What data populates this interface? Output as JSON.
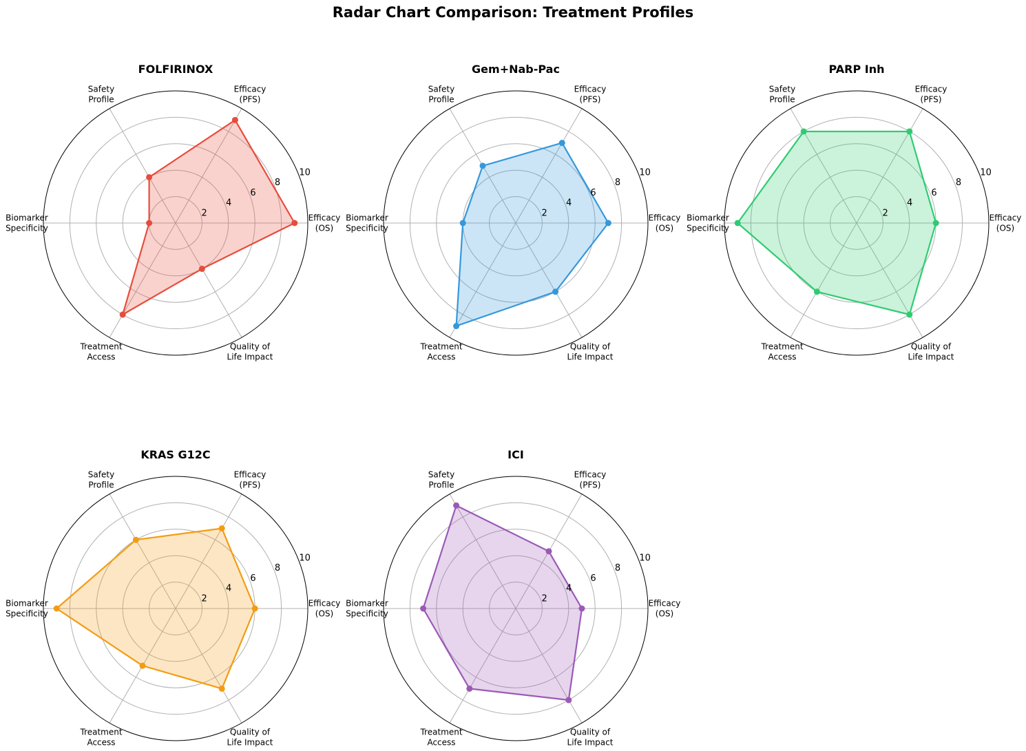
{
  "title": "Radar Chart Comparison: Treatment Profiles",
  "chart_data": {
    "type": "radar",
    "axes": [
      "Efficacy\n(OS)",
      "Efficacy\n(PFS)",
      "Safety\nProfile",
      "Biomarker\nSpecificity",
      "Treatment\nAccess",
      "Quality of\nLife Impact"
    ],
    "rlim": [
      0,
      10
    ],
    "rticks": [
      2,
      4,
      6,
      8,
      10
    ],
    "grid": true,
    "charts": [
      {
        "title": "FOLFIRINOX",
        "color": "#e74c3c",
        "values": [
          9,
          9,
          4,
          2,
          8,
          4
        ]
      },
      {
        "title": "Gem+Nab-Pac",
        "color": "#3498db",
        "values": [
          7,
          7,
          5,
          4,
          9,
          6
        ]
      },
      {
        "title": "PARP Inh",
        "color": "#2ecc71",
        "values": [
          6,
          8,
          8,
          9,
          6,
          8
        ]
      },
      {
        "title": "KRAS G12C",
        "color": "#f39c12",
        "values": [
          6,
          7,
          6,
          9,
          5,
          7
        ]
      },
      {
        "title": "ICI",
        "color": "#9b59b6",
        "values": [
          5,
          5,
          9,
          7,
          7,
          8
        ]
      }
    ]
  }
}
